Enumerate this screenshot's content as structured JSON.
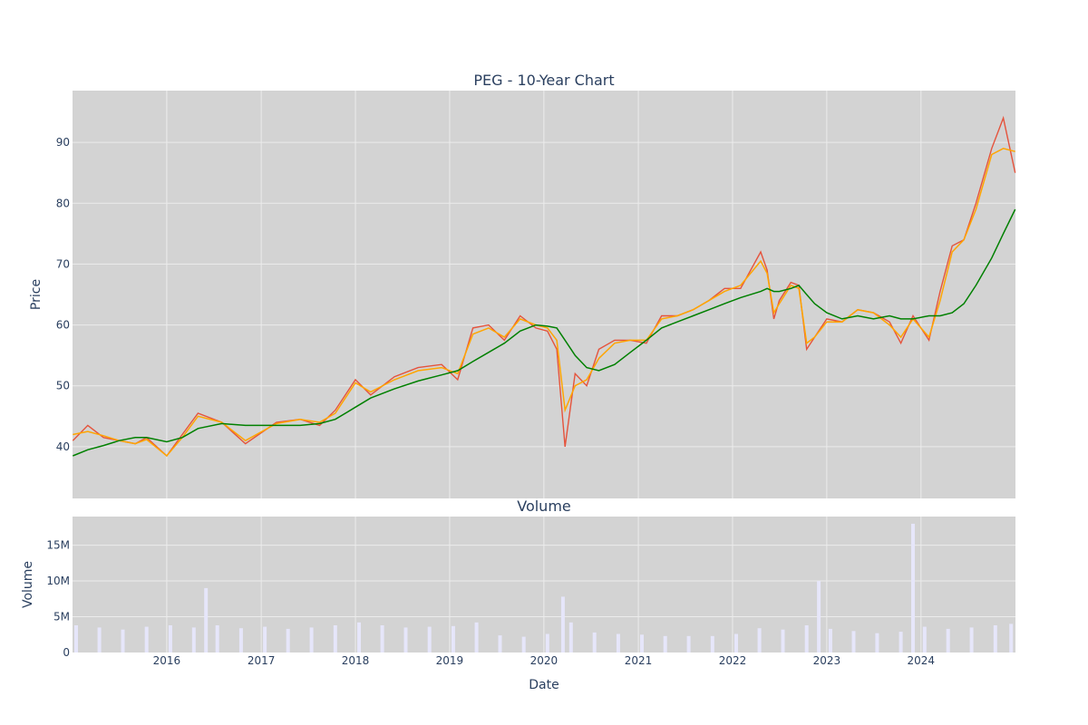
{
  "chart_data": [
    {
      "type": "line",
      "title": "PEG - 10-Year Chart",
      "xlabel": "",
      "ylabel": "Price",
      "xlim": [
        "2015-01-01",
        "2025-01-01"
      ],
      "ylim": [
        31.5,
        98.5
      ],
      "yticks": [
        40,
        50,
        60,
        70,
        80,
        90
      ],
      "grid": true,
      "background": "#d3d3d3",
      "x": [
        "2015-01-02",
        "2015-03-01",
        "2015-05-01",
        "2015-07-01",
        "2015-09-01",
        "2015-10-15",
        "2016-01-01",
        "2016-03-01",
        "2016-05-01",
        "2016-08-01",
        "2016-11-01",
        "2017-03-01",
        "2017-06-01",
        "2017-08-15",
        "2017-10-15",
        "2018-01-01",
        "2018-03-01",
        "2018-06-01",
        "2018-09-01",
        "2018-12-01",
        "2019-02-01",
        "2019-04-01",
        "2019-06-01",
        "2019-08-01",
        "2019-10-01",
        "2019-12-01",
        "2020-01-15",
        "2020-02-20",
        "2020-03-23",
        "2020-05-01",
        "2020-06-15",
        "2020-08-01",
        "2020-10-01",
        "2020-12-01",
        "2021-02-01",
        "2021-04-01",
        "2021-06-01",
        "2021-08-01",
        "2021-10-01",
        "2021-12-01",
        "2022-02-01",
        "2022-04-20",
        "2022-05-15",
        "2022-06-10",
        "2022-07-01",
        "2022-08-15",
        "2022-09-15",
        "2022-10-15",
        "2022-11-15",
        "2023-01-01",
        "2023-03-01",
        "2023-05-01",
        "2023-07-01",
        "2023-09-01",
        "2023-10-15",
        "2023-12-01",
        "2024-02-01",
        "2024-03-15",
        "2024-05-01",
        "2024-06-15",
        "2024-08-01",
        "2024-10-01",
        "2024-11-15",
        "2024-12-31"
      ],
      "series": [
        {
          "values": [
            41.0,
            43.5,
            41.5,
            41.0,
            40.5,
            41.5,
            38.5,
            42.0,
            45.5,
            44.0,
            40.5,
            44.0,
            44.5,
            43.5,
            46.0,
            51.0,
            48.5,
            51.5,
            53.0,
            53.5,
            51.0,
            59.5,
            60.0,
            57.5,
            61.5,
            59.5,
            59.0,
            56.0,
            40.0,
            52.0,
            50.0,
            56.0,
            57.5,
            57.5,
            57.0,
            61.5,
            61.5,
            62.5,
            64.0,
            66.0,
            66.0,
            72.0,
            69.0,
            61.0,
            64.0,
            67.0,
            66.5,
            56.0,
            58.0,
            61.0,
            60.5,
            62.5,
            62.0,
            60.5,
            57.0,
            61.5,
            57.5,
            65.5,
            73.0,
            74.0,
            80.0,
            89.0,
            94.0,
            85.0
          ],
          "color": "#e5533c"
        },
        {
          "values": [
            42.0,
            42.5,
            41.8,
            41.0,
            40.5,
            41.2,
            38.5,
            41.5,
            45.0,
            44.0,
            41.0,
            43.8,
            44.5,
            44.0,
            45.5,
            50.5,
            49.0,
            51.0,
            52.5,
            53.0,
            52.0,
            58.5,
            59.5,
            58.0,
            61.0,
            60.0,
            59.5,
            57.5,
            46.0,
            50.0,
            51.0,
            54.5,
            57.0,
            57.5,
            57.5,
            61.0,
            61.5,
            62.5,
            64.0,
            65.5,
            66.5,
            70.5,
            68.5,
            62.0,
            63.5,
            66.5,
            66.0,
            57.0,
            58.0,
            60.5,
            60.5,
            62.5,
            62.0,
            60.0,
            58.0,
            61.0,
            58.0,
            64.0,
            72.0,
            74.0,
            79.0,
            88.0,
            89.0,
            88.5
          ],
          "color": "#ffa500"
        },
        {
          "values": [
            38.5,
            39.5,
            40.2,
            41.0,
            41.5,
            41.5,
            40.8,
            41.5,
            43.0,
            43.8,
            43.5,
            43.5,
            43.5,
            43.8,
            44.5,
            46.5,
            48.0,
            49.5,
            50.8,
            51.8,
            52.5,
            54.0,
            55.5,
            57.0,
            59.0,
            60.0,
            59.8,
            59.5,
            57.5,
            55.0,
            53.0,
            52.5,
            53.5,
            55.5,
            57.5,
            59.5,
            60.5,
            61.5,
            62.5,
            63.5,
            64.5,
            65.5,
            66.0,
            65.5,
            65.5,
            66.0,
            66.5,
            65.0,
            63.5,
            62.0,
            61.0,
            61.5,
            61.0,
            61.5,
            61.0,
            61.0,
            61.5,
            61.5,
            62.0,
            63.5,
            66.5,
            71.0,
            75.0,
            79.0
          ],
          "color": "#008000"
        }
      ]
    },
    {
      "type": "bar",
      "title": "Volume",
      "xlabel": "Date",
      "ylabel": "Volume",
      "ylim": [
        0,
        19000000
      ],
      "yticks": [
        0,
        5000000,
        10000000,
        15000000
      ],
      "ytick_labels": [
        "0",
        "5M",
        "10M",
        "15M"
      ],
      "xticks": [
        "2016-01-01",
        "2017-01-01",
        "2018-01-01",
        "2019-01-01",
        "2020-01-01",
        "2021-01-01",
        "2022-01-01",
        "2023-01-01",
        "2024-01-01"
      ],
      "xtick_labels": [
        "2016",
        "2017",
        "2018",
        "2019",
        "2020",
        "2021",
        "2022",
        "2023",
        "2024"
      ],
      "grid": true,
      "background": "#d3d3d3",
      "bar_color": "#e6e6fa",
      "x": [
        "2015-01-15",
        "2015-04-15",
        "2015-07-15",
        "2015-10-15",
        "2016-01-15",
        "2016-04-15",
        "2016-06-01",
        "2016-07-15",
        "2016-10-15",
        "2017-01-15",
        "2017-04-15",
        "2017-07-15",
        "2017-10-15",
        "2018-01-15",
        "2018-04-15",
        "2018-07-15",
        "2018-10-15",
        "2019-01-15",
        "2019-04-15",
        "2019-07-15",
        "2019-10-15",
        "2020-01-15",
        "2020-03-15",
        "2020-04-15",
        "2020-07-15",
        "2020-10-15",
        "2021-01-15",
        "2021-04-15",
        "2021-07-15",
        "2021-10-15",
        "2022-01-15",
        "2022-04-15",
        "2022-07-15",
        "2022-10-15",
        "2022-12-01",
        "2023-01-15",
        "2023-04-15",
        "2023-07-15",
        "2023-10-15",
        "2023-12-01",
        "2024-01-15",
        "2024-04-15",
        "2024-07-15",
        "2024-10-15",
        "2024-12-15"
      ],
      "values": [
        3800000,
        3500000,
        3200000,
        3600000,
        3800000,
        3500000,
        9000000,
        3800000,
        3400000,
        3600000,
        3300000,
        3500000,
        3800000,
        4200000,
        3800000,
        3500000,
        3600000,
        3700000,
        4200000,
        2400000,
        2200000,
        2600000,
        7800000,
        4200000,
        2800000,
        2600000,
        2500000,
        2300000,
        2300000,
        2300000,
        2600000,
        3400000,
        3200000,
        3800000,
        10000000,
        3300000,
        3000000,
        2700000,
        2900000,
        18000000,
        3600000,
        3300000,
        3500000,
        3800000,
        4000000
      ]
    }
  ]
}
